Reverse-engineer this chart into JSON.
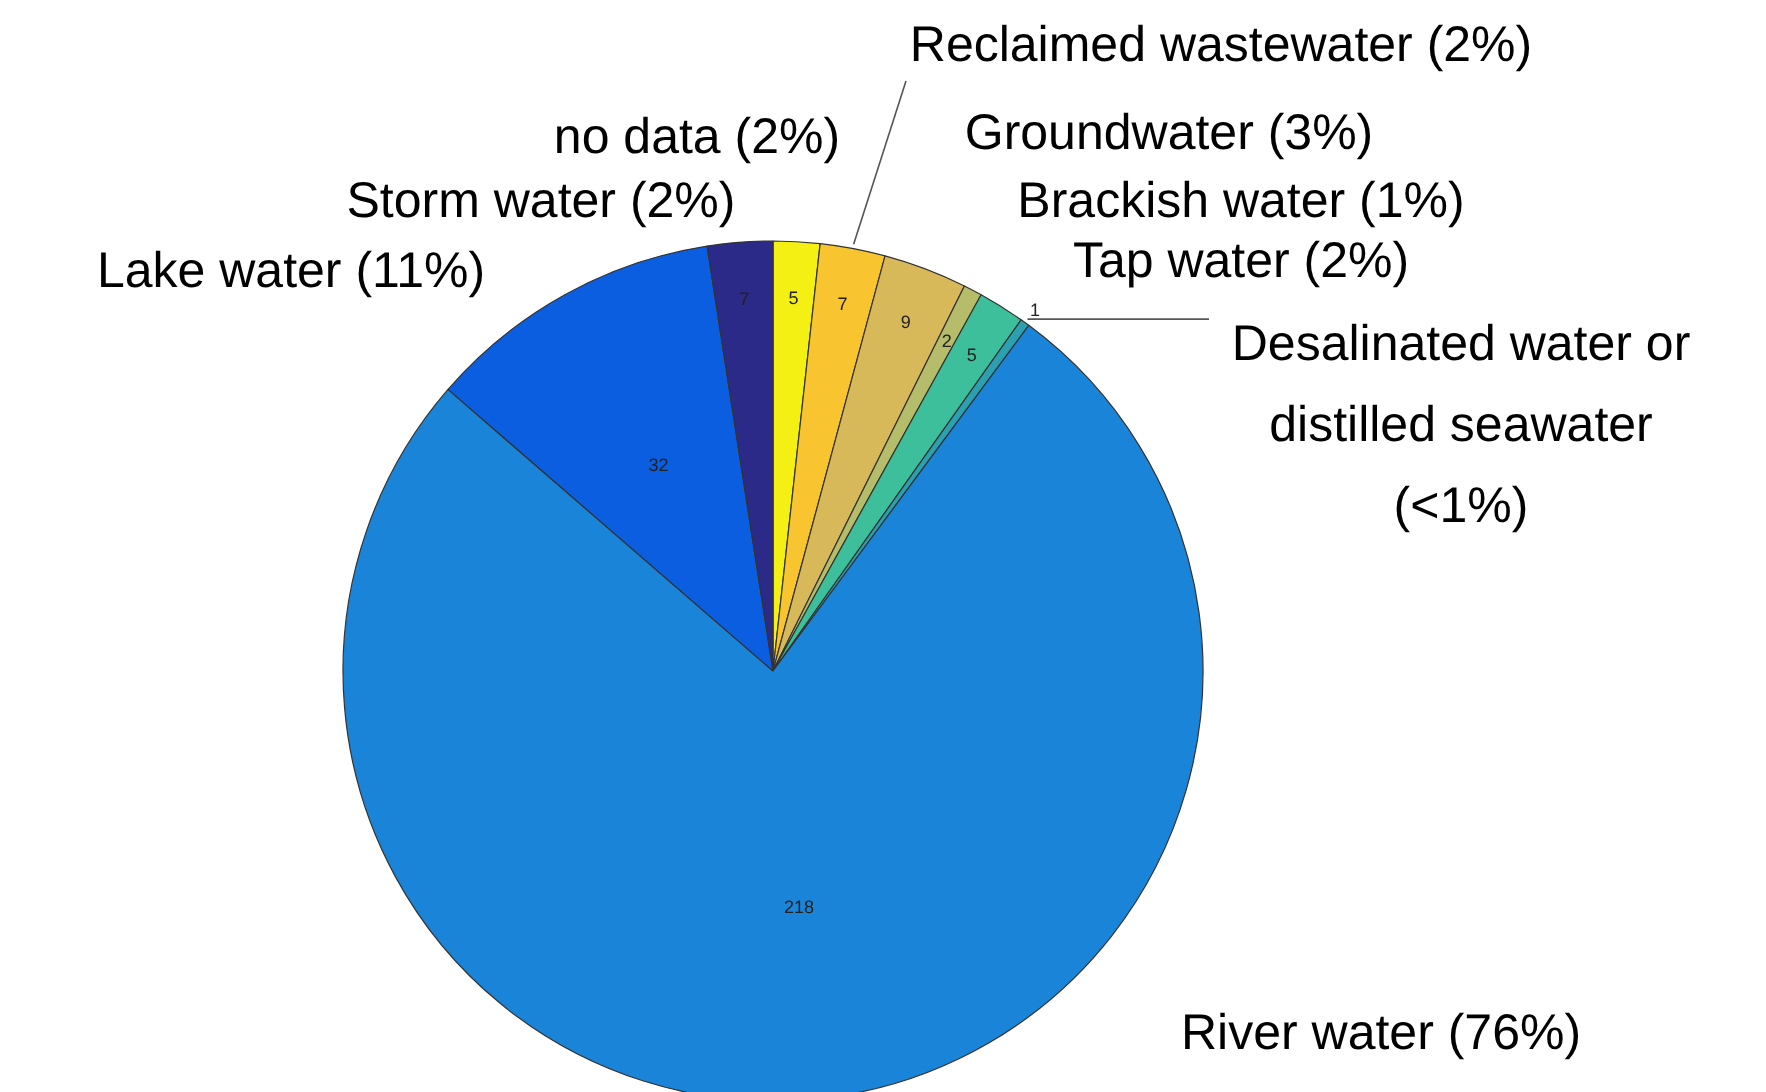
{
  "chart_data": {
    "type": "pie",
    "categories": [
      "no data (2%)",
      "Reclaimed wastewater (2%)",
      "Groundwater (3%)",
      "Brackish water (1%)",
      "Tap water (2%)",
      "Desalinated water or distilled seawater (<1%)",
      "River water (76%)",
      "Lake water (11%)",
      "Storm water (2%)"
    ],
    "values": [
      5,
      7,
      9,
      2,
      5,
      1,
      218,
      32,
      7
    ],
    "colors": [
      "#f5f014",
      "#f8c530",
      "#d8b95a",
      "#b5bd6a",
      "#3cbf9a",
      "#2aa0b0",
      "#1a85d8",
      "#0b5ee0",
      "#2b2a88"
    ],
    "data_labels": true
  }
}
